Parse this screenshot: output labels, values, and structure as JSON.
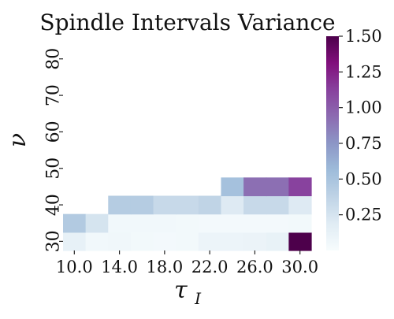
{
  "chart_data": {
    "type": "heatmap",
    "title": "Spindle Intervals Variance",
    "xlabel": "τ",
    "xlabel_sub": "I",
    "ylabel": "ν",
    "x_values": [
      10.0,
      12.0,
      14.0,
      16.0,
      18.0,
      20.0,
      22.0,
      24.0,
      26.0,
      28.0,
      30.0
    ],
    "y_values": [
      30,
      35,
      40,
      45,
      50,
      55,
      60,
      65,
      70,
      75,
      80,
      85
    ],
    "x_ticks": [
      "10.0",
      "14.0",
      "18.0",
      "22.0",
      "26.0",
      "30.0"
    ],
    "y_ticks": [
      "30",
      "40",
      "50",
      "60",
      "70",
      "80"
    ],
    "values": [
      [
        0.13,
        0.05,
        0.06,
        0.04,
        0.03,
        0.04,
        0.09,
        0.09,
        0.1,
        0.12,
        1.5
      ],
      [
        0.45,
        0.25,
        0.05,
        0.05,
        0.05,
        0.04,
        0.03,
        0.03,
        0.03,
        0.03,
        0.04
      ],
      [
        null,
        null,
        0.43,
        0.43,
        0.33,
        0.33,
        0.37,
        0.2,
        0.33,
        0.33,
        0.2
      ],
      [
        null,
        null,
        null,
        null,
        null,
        null,
        null,
        0.52,
        0.92,
        0.92,
        1.12
      ],
      [
        null,
        null,
        null,
        null,
        null,
        null,
        null,
        null,
        null,
        null,
        null
      ],
      [
        null,
        null,
        null,
        null,
        null,
        null,
        null,
        null,
        null,
        null,
        null
      ],
      [
        null,
        null,
        null,
        null,
        null,
        null,
        null,
        null,
        null,
        null,
        null
      ],
      [
        null,
        null,
        null,
        null,
        null,
        null,
        null,
        null,
        null,
        null,
        null
      ],
      [
        null,
        null,
        null,
        null,
        null,
        null,
        null,
        null,
        null,
        null,
        null
      ],
      [
        null,
        null,
        null,
        null,
        null,
        null,
        null,
        null,
        null,
        null,
        null
      ],
      [
        null,
        null,
        null,
        null,
        null,
        null,
        null,
        null,
        null,
        null,
        null
      ],
      [
        null,
        null,
        null,
        null,
        null,
        null,
        null,
        null,
        null,
        null,
        null
      ]
    ],
    "colormap": "BuPu",
    "colorbar": {
      "min": 0.0,
      "max": 1.5,
      "ticks": [
        "0.25",
        "0.50",
        "0.75",
        "1.00",
        "1.25",
        "1.50"
      ],
      "tick_values": [
        0.25,
        0.5,
        0.75,
        1.0,
        1.25,
        1.5
      ]
    },
    "grid": false
  }
}
